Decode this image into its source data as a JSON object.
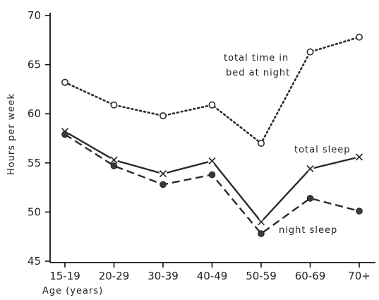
{
  "chart_data": {
    "type": "line",
    "categories": [
      "15-19",
      "20-29",
      "30-39",
      "40-49",
      "50-59",
      "60-69",
      "70+"
    ],
    "xlabel": "Age (years)",
    "ylabel": "Hours per week",
    "ylim": [
      45,
      70
    ],
    "yticks": [
      45,
      50,
      55,
      60,
      65,
      70
    ],
    "grid": false,
    "legend": "none (series labelled inline)",
    "series": [
      {
        "name": "total time in bed at night",
        "values": [
          63.2,
          60.9,
          59.8,
          60.9,
          57.0,
          66.3,
          67.8
        ],
        "marker": "open-circle",
        "line_style": "dotted",
        "color": "#2b2b2b"
      },
      {
        "name": "total sleep",
        "values": [
          58.2,
          55.3,
          53.9,
          55.2,
          49.0,
          54.4,
          55.6
        ],
        "marker": "x",
        "line_style": "solid",
        "color": "#2b2b2b"
      },
      {
        "name": "night sleep",
        "values": [
          57.9,
          54.7,
          52.8,
          53.8,
          47.8,
          51.4,
          50.1
        ],
        "marker": "filled-circle",
        "line_style": "dashed",
        "color": "#2b2b2b"
      }
    ],
    "annotations": {
      "bed": [
        "total time in",
        "bed at night"
      ],
      "total_sleep": "total sleep",
      "night_sleep": "night sleep"
    }
  }
}
